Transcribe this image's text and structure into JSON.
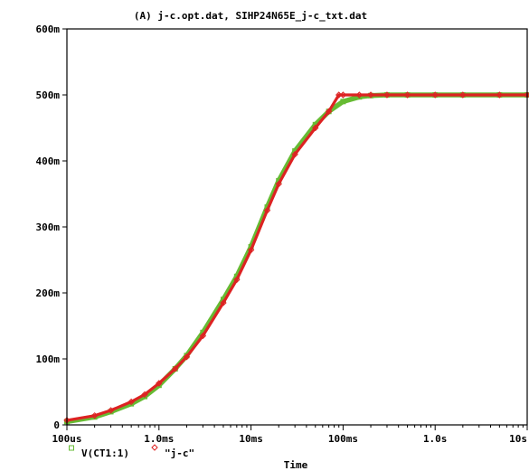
{
  "chart_data": {
    "type": "line",
    "title": "(A) j-c.opt.dat, SIHP24N65E_j-c_txt.dat",
    "xlabel": "Time",
    "ylabel": "",
    "x_scale": "log",
    "xlim": [
      "100us",
      "10s"
    ],
    "x_range_seconds": [
      0.0001,
      10
    ],
    "ylim": [
      0,
      0.6
    ],
    "x_ticks": [
      {
        "label": "100us",
        "value": 0.0001
      },
      {
        "label": "1.0ms",
        "value": 0.001
      },
      {
        "label": "10ms",
        "value": 0.01
      },
      {
        "label": "100ms",
        "value": 0.1
      },
      {
        "label": "1.0s",
        "value": 1
      },
      {
        "label": "10s",
        "value": 10
      }
    ],
    "y_ticks": [
      {
        "label": "0",
        "value": 0
      },
      {
        "label": "100m",
        "value": 0.1
      },
      {
        "label": "200m",
        "value": 0.2
      },
      {
        "label": "300m",
        "value": 0.3
      },
      {
        "label": "400m",
        "value": 0.4
      },
      {
        "label": "500m",
        "value": 0.5
      },
      {
        "label": "600m",
        "value": 0.6
      }
    ],
    "grid": false,
    "legend_position": "bottom-left",
    "series": [
      {
        "name": "V(CT1:1)",
        "color": "#66bb33",
        "marker": "square",
        "x": [
          0.0001,
          0.0002,
          0.0003,
          0.0005,
          0.0007,
          0.001,
          0.0015,
          0.002,
          0.003,
          0.005,
          0.007,
          0.01,
          0.015,
          0.02,
          0.03,
          0.05,
          0.07,
          0.1,
          0.15,
          0.2,
          0.3,
          0.5,
          1,
          2,
          5,
          10
        ],
        "y": [
          0.005,
          0.012,
          0.02,
          0.032,
          0.043,
          0.06,
          0.085,
          0.105,
          0.14,
          0.19,
          0.225,
          0.27,
          0.33,
          0.37,
          0.415,
          0.455,
          0.475,
          0.49,
          0.497,
          0.499,
          0.5,
          0.5,
          0.5,
          0.5,
          0.5,
          0.5
        ]
      },
      {
        "name": "\"j-c\"",
        "color": "#dd2222",
        "marker": "diamond",
        "x": [
          0.0001,
          0.0002,
          0.0003,
          0.0005,
          0.0007,
          0.001,
          0.0015,
          0.002,
          0.003,
          0.005,
          0.007,
          0.01,
          0.015,
          0.02,
          0.03,
          0.05,
          0.07,
          0.09,
          0.1,
          0.15,
          0.2,
          0.3,
          0.5,
          1,
          2,
          5,
          10
        ],
        "y": [
          0.007,
          0.014,
          0.022,
          0.035,
          0.046,
          0.063,
          0.085,
          0.103,
          0.135,
          0.185,
          0.22,
          0.265,
          0.325,
          0.365,
          0.41,
          0.45,
          0.475,
          0.5,
          0.5,
          0.5,
          0.5,
          0.5,
          0.5,
          0.5,
          0.5,
          0.5,
          0.5
        ]
      }
    ]
  }
}
